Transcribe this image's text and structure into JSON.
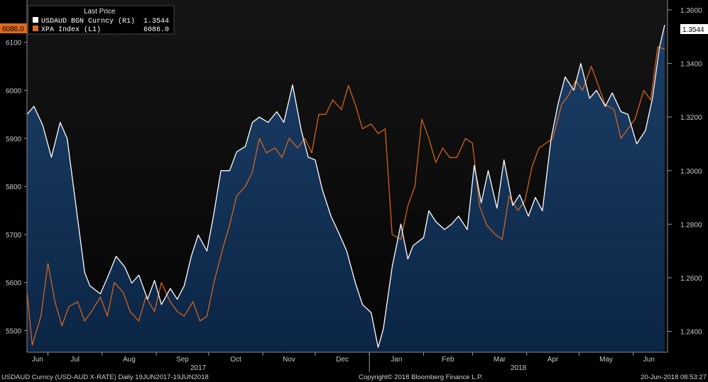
{
  "legend": {
    "header": "Last Price",
    "entries": [
      {
        "name": "USDAUD BGN Curncy  (R1)",
        "value": "1.3544",
        "color": "#ffffff"
      },
      {
        "name": "XPA Index  (L1)",
        "value": "6086.0",
        "color": "#e06a1a"
      }
    ]
  },
  "footer": {
    "left": "USDAUD Curncy (USD-AUD X-RATE)  Daily 19JUN2017-19JUN2018",
    "center": "Copyright© 2018 Bloomberg Finance L.P.",
    "right": "20-Jun-2018 08:53:27"
  },
  "colors": {
    "background": "#000000",
    "plot_top": "#101010",
    "area_top": "#1c3f67",
    "area_bottom": "#0b2545",
    "white_line": "#ffffff",
    "orange_line": "#e06a1a",
    "axis_text": "#c8c8c8"
  },
  "chart_data": {
    "type": "line",
    "title": "",
    "x_range": [
      "2017-06-19",
      "2018-06-19"
    ],
    "month_labels": [
      "Jun",
      "Jul",
      "Aug",
      "Sep",
      "Oct",
      "Nov",
      "Dec",
      "Jan",
      "Feb",
      "Mar",
      "Apr",
      "May",
      "Jun"
    ],
    "year_labels": [
      "2017",
      "2018"
    ],
    "left_axis": {
      "ticks": [
        5500,
        5600,
        5700,
        5800,
        5900,
        6000,
        6100
      ],
      "tick_labels": [
        "5500",
        "5600",
        "5700",
        "5800",
        "5900",
        "6000",
        "6100"
      ],
      "range": [
        5455,
        6188
      ],
      "last_value_label": "6086.0"
    },
    "right_axis": {
      "ticks": [
        1.24,
        1.26,
        1.28,
        1.3,
        1.32,
        1.34,
        1.36
      ],
      "tick_labels": [
        "1.2400",
        "1.2600",
        "1.2800",
        "1.3000",
        "1.3200",
        "1.3400",
        "1.3600"
      ],
      "range": [
        1.2322,
        1.3637
      ],
      "last_value_label": "1.3544"
    },
    "series": [
      {
        "name": "USDAUD BGN Curncy",
        "axis": "right",
        "style": "area",
        "x": [
          "2017-06-19",
          "2017-06-23",
          "2017-06-28",
          "2017-07-03",
          "2017-07-08",
          "2017-07-12",
          "2017-07-17",
          "2017-07-22",
          "2017-07-25",
          "2017-07-31",
          "2017-08-04",
          "2017-08-09",
          "2017-08-14",
          "2017-08-18",
          "2017-08-22",
          "2017-08-27",
          "2017-08-31",
          "2017-09-04",
          "2017-09-09",
          "2017-09-13",
          "2017-09-17",
          "2017-09-21",
          "2017-09-25",
          "2017-09-30",
          "2017-10-04",
          "2017-10-08",
          "2017-10-13",
          "2017-10-17",
          "2017-10-22",
          "2017-10-26",
          "2017-10-30",
          "2017-11-04",
          "2017-11-09",
          "2017-11-13",
          "2017-11-18",
          "2017-11-23",
          "2017-11-27",
          "2017-12-01",
          "2017-12-05",
          "2017-12-10",
          "2017-12-15",
          "2017-12-19",
          "2017-12-24",
          "2017-12-28",
          "2018-01-02",
          "2018-01-06",
          "2018-01-09",
          "2018-01-14",
          "2018-01-19",
          "2018-01-23",
          "2018-01-26",
          "2018-02-01",
          "2018-02-04",
          "2018-02-08",
          "2018-02-13",
          "2018-02-17",
          "2018-02-21",
          "2018-02-26",
          "2018-03-02",
          "2018-03-06",
          "2018-03-10",
          "2018-03-15",
          "2018-03-19",
          "2018-03-24",
          "2018-03-28",
          "2018-04-02",
          "2018-04-06",
          "2018-04-10",
          "2018-04-15",
          "2018-04-19",
          "2018-04-23",
          "2018-04-28",
          "2018-05-02",
          "2018-05-07",
          "2018-05-11",
          "2018-05-16",
          "2018-05-20",
          "2018-05-25",
          "2018-05-29",
          "2018-06-03",
          "2018-06-08",
          "2018-06-12",
          "2018-06-16",
          "2018-06-19"
        ],
        "values": [
          1.321,
          1.324,
          1.317,
          1.305,
          1.318,
          1.312,
          1.287,
          1.262,
          1.257,
          1.254,
          1.26,
          1.268,
          1.264,
          1.258,
          1.261,
          1.252,
          1.259,
          1.25,
          1.256,
          1.252,
          1.257,
          1.268,
          1.276,
          1.27,
          1.284,
          1.3,
          1.3,
          1.307,
          1.309,
          1.318,
          1.32,
          1.318,
          1.322,
          1.318,
          1.332,
          1.315,
          1.305,
          1.304,
          1.293,
          1.283,
          1.276,
          1.27,
          1.258,
          1.25,
          1.247,
          1.234,
          1.241,
          1.264,
          1.28,
          1.267,
          1.272,
          1.275,
          1.285,
          1.281,
          1.278,
          1.28,
          1.283,
          1.278,
          1.302,
          1.288,
          1.3,
          1.286,
          1.304,
          1.287,
          1.291,
          1.283,
          1.29,
          1.285,
          1.312,
          1.325,
          1.335,
          1.33,
          1.34,
          1.327,
          1.33,
          1.324,
          1.329,
          1.322,
          1.321,
          1.31,
          1.315,
          1.327,
          1.346,
          1.3544
        ]
      },
      {
        "name": "XPA Index",
        "axis": "left",
        "style": "line",
        "x": [
          "2017-06-19",
          "2017-06-22",
          "2017-06-27",
          "2017-07-01",
          "2017-07-05",
          "2017-07-09",
          "2017-07-13",
          "2017-07-18",
          "2017-07-22",
          "2017-07-26",
          "2017-07-31",
          "2017-08-04",
          "2017-08-08",
          "2017-08-13",
          "2017-08-17",
          "2017-08-22",
          "2017-08-26",
          "2017-08-31",
          "2017-09-04",
          "2017-09-09",
          "2017-09-13",
          "2017-09-17",
          "2017-09-22",
          "2017-09-26",
          "2017-09-30",
          "2017-10-04",
          "2017-10-09",
          "2017-10-13",
          "2017-10-17",
          "2017-10-22",
          "2017-10-26",
          "2017-10-30",
          "2017-11-03",
          "2017-11-08",
          "2017-11-12",
          "2017-11-16",
          "2017-11-21",
          "2017-11-25",
          "2017-11-29",
          "2017-12-03",
          "2017-12-07",
          "2017-12-11",
          "2017-12-16",
          "2017-12-20",
          "2017-12-24",
          "2017-12-28",
          "2018-01-02",
          "2018-01-06",
          "2018-01-10",
          "2018-01-14",
          "2018-01-19",
          "2018-01-23",
          "2018-01-27",
          "2018-01-31",
          "2018-02-04",
          "2018-02-08",
          "2018-02-12",
          "2018-02-16",
          "2018-02-20",
          "2018-02-25",
          "2018-03-01",
          "2018-03-05",
          "2018-03-09",
          "2018-03-14",
          "2018-03-18",
          "2018-03-22",
          "2018-03-27",
          "2018-03-31",
          "2018-04-04",
          "2018-04-08",
          "2018-04-12",
          "2018-04-16",
          "2018-04-21",
          "2018-04-25",
          "2018-04-29",
          "2018-05-03",
          "2018-05-08",
          "2018-05-12",
          "2018-05-16",
          "2018-05-21",
          "2018-05-25",
          "2018-05-29",
          "2018-06-02",
          "2018-06-07",
          "2018-06-11",
          "2018-06-15",
          "2018-06-19"
        ],
        "values": [
          5580,
          5470,
          5530,
          5640,
          5560,
          5510,
          5550,
          5560,
          5520,
          5540,
          5570,
          5530,
          5600,
          5580,
          5540,
          5520,
          5570,
          5540,
          5600,
          5560,
          5540,
          5530,
          5560,
          5520,
          5530,
          5600,
          5670,
          5720,
          5780,
          5800,
          5830,
          5900,
          5870,
          5880,
          5860,
          5900,
          5880,
          5900,
          5870,
          5950,
          5950,
          5980,
          5960,
          6010,
          5970,
          5920,
          5930,
          5910,
          5920,
          5700,
          5690,
          5760,
          5800,
          5940,
          5900,
          5850,
          5880,
          5860,
          5860,
          5900,
          5890,
          5760,
          5720,
          5700,
          5690,
          5780,
          5750,
          5770,
          5840,
          5880,
          5890,
          5900,
          5970,
          5990,
          6020,
          6000,
          6050,
          6010,
          5970,
          5960,
          5900,
          5920,
          5940,
          6000,
          5980,
          6090,
          6086
        ]
      }
    ]
  }
}
